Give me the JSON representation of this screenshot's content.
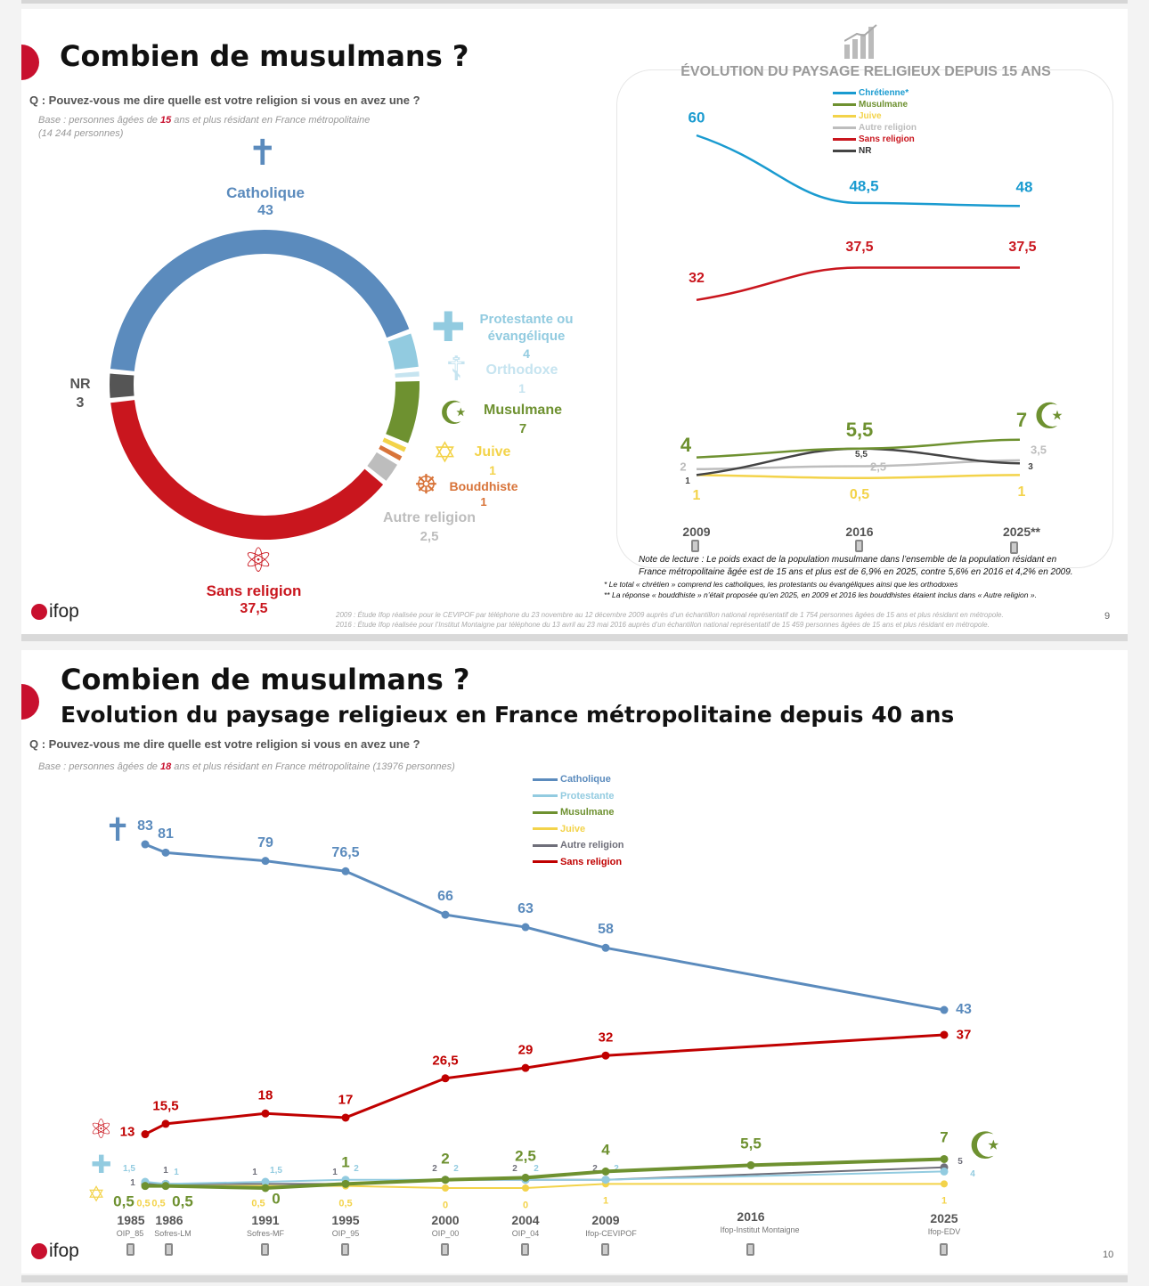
{
  "slide1": {
    "title": "Combien de musulmans ?",
    "question": "Q : Pouvez-vous me dire quelle est votre religion si vous en avez une ?",
    "base_prefix": "Base : personnes âgées de ",
    "base_age": "15",
    "base_suffix": " ans et plus résidant en France métropolitaine",
    "base_count": "(14 244 personnes)",
    "logo": "ifop",
    "page_number": "9",
    "donut": {
      "type": "pie",
      "segments": [
        {
          "name": "Catholique",
          "value": 43,
          "label": "43",
          "color": "#5b8bbd",
          "icon": "crucifix-icon"
        },
        {
          "name": "Protestante ou évangélique",
          "value": 4,
          "label": "4",
          "color": "#92cbe0",
          "icon": "cross-icon"
        },
        {
          "name": "Orthodoxe",
          "value": 1,
          "label": "1",
          "color": "#c6e4f0",
          "icon": "orthodox-cross-icon"
        },
        {
          "name": "Musulmane",
          "value": 7,
          "label": "7",
          "color": "#6e9130",
          "icon": "crescent-icon"
        },
        {
          "name": "Juive",
          "value": 1,
          "label": "1",
          "color": "#f3d34a",
          "icon": "star-of-david-icon"
        },
        {
          "name": "Bouddhiste",
          "value": 1,
          "label": "1",
          "color": "#d8743a",
          "icon": "dharma-wheel-icon"
        },
        {
          "name": "Autre religion",
          "value": 2.5,
          "label": "2,5",
          "color": "#bdbdbd",
          "icon": ""
        },
        {
          "name": "Sans religion",
          "value": 37.5,
          "label": "37,5",
          "color": "#c9161e",
          "icon": "atom-icon"
        },
        {
          "name": "NR",
          "value": 3,
          "label": "3",
          "color": "#555555",
          "icon": ""
        }
      ],
      "label_lines": {
        "protestante_1": "Protestante ou",
        "protestante_2": "évangélique"
      }
    },
    "evolution": {
      "title": "ÉVOLUTION DU PAYSAGE RELIGIEUX DEPUIS 15 ANS",
      "chart_data": {
        "type": "line",
        "title": "ÉVOLUTION DU PAYSAGE RELIGIEUX DEPUIS 15 ANS",
        "categories": [
          "2009",
          "2016",
          "2025**"
        ],
        "legend_position": "top",
        "series": [
          {
            "name": "Chrétienne*",
            "values": [
              60,
              48.5,
              48
            ],
            "labels": [
              "60",
              "48,5",
              "48"
            ],
            "color": "#1a9bd0"
          },
          {
            "name": "Musulmane",
            "values": [
              4,
              5.5,
              7
            ],
            "labels": [
              "4",
              "5,5",
              "7"
            ],
            "color": "#6e9130"
          },
          {
            "name": "Juive",
            "values": [
              1,
              0.5,
              1
            ],
            "labels": [
              "1",
              "0,5",
              "1"
            ],
            "color": "#f3d34a"
          },
          {
            "name": "Autre religion",
            "values": [
              2,
              2.5,
              3.5
            ],
            "labels": [
              "2",
              "2,5",
              "3,5"
            ],
            "color": "#bdbdbd"
          },
          {
            "name": "Sans religion",
            "values": [
              32,
              37.5,
              37.5
            ],
            "labels": [
              "32",
              "37,5",
              "37,5"
            ],
            "color": "#c9161e"
          },
          {
            "name": "NR",
            "values": [
              1,
              5.5,
              3
            ],
            "labels": [
              "1",
              "5,5",
              "3"
            ],
            "color": "#444444"
          }
        ]
      },
      "note_1": "Note de lecture : Le poids exact de la population musulmane dans l’ensemble de la population résidant en",
      "note_2": "France métropolitaine âgée est de 15 ans et plus est de 6,9% en 2025, contre 5,6% en 2016 et 4,2% en 2009.",
      "footnote_1": "* Le total « chrétien » comprend les catholiques, les protestants ou évangéliques ainsi que les orthodoxes",
      "footnote_2": "** La réponse « bouddhiste » n’était proposée qu’en 2025, en 2009 et 2016 les bouddhistes étaient inclus dans « Autre religion ».",
      "source_1": "2009 : Étude Ifop réalisée pour le CEVIPOF par téléphone du 23 novembre au 12 décembre 2009 auprès d’un échantillon national représentatif de 1 754 personnes âgées de 15 ans et plus résidant en métropole.",
      "source_2": "2016 : Étude Ifop réalisée pour l’Institut Montaigne par téléphone du 13 avril au 23 mai 2016 auprès d’un échantillon national représentatif de 15 459 personnes âgées de 15 ans et plus résidant en métropole."
    }
  },
  "slide2": {
    "title": "Combien de musulmans ?",
    "subtitle": "Evolution du paysage religieux en France métropolitaine depuis 40 ans",
    "question": "Q : Pouvez-vous me dire quelle est votre religion si vous en avez une ?",
    "base_prefix": "Base : personnes âgées de ",
    "base_age": "18",
    "base_suffix": " ans et plus résidant en France métropolitaine (13976 personnes)",
    "logo": "ifop",
    "page_number": "10",
    "chart_data": {
      "type": "line",
      "x": [
        1985,
        1986,
        1991,
        1995,
        2000,
        2004,
        2009,
        2016,
        2025
      ],
      "categories": [
        "1985",
        "1986",
        "1991",
        "1995",
        "2000",
        "2004",
        "2009",
        "2016",
        "2025"
      ],
      "sources": [
        "OIP_85",
        "Sofres-LM",
        "Sofres-MF",
        "OIP_95",
        "OIP_00",
        "OIP_04",
        "Ifop-CEVIPOF",
        "Ifop-Institut Montaigne",
        "Ifop-EDV"
      ],
      "legend_position": "top-center",
      "series": [
        {
          "name": "Catholique",
          "color": "#5b8bbd",
          "values": [
            83,
            81,
            79,
            76.5,
            66,
            63,
            58,
            null,
            43
          ],
          "labels": [
            "83",
            "81",
            "79",
            "76,5",
            "66",
            "63",
            "58",
            null,
            "43"
          ]
        },
        {
          "name": "Protestante",
          "color": "#92cbe0",
          "values": [
            1.5,
            1,
            1.5,
            2,
            2,
            2,
            2,
            null,
            4
          ],
          "labels": [
            "1,5",
            "1",
            "1,5",
            "2",
            "2",
            "2",
            "2",
            null,
            "4"
          ]
        },
        {
          "name": "Musulmane",
          "color": "#6e9130",
          "values": [
            0.5,
            0.5,
            0,
            1,
            2,
            2.5,
            4,
            5.5,
            7
          ],
          "labels": [
            "0,5",
            "0,5",
            "0",
            "1",
            "2",
            "2,5",
            "4",
            "5,5",
            "7"
          ]
        },
        {
          "name": "Juive",
          "color": "#f3d34a",
          "values": [
            0.5,
            0.5,
            0.5,
            0.5,
            0,
            0,
            1,
            null,
            1
          ],
          "labels": [
            "0,5",
            "0,5",
            "0,5",
            "0,5",
            "0",
            "0",
            "1",
            null,
            "1"
          ]
        },
        {
          "name": "Autre religion",
          "color": "#6f6f7a",
          "values": [
            1,
            1,
            1,
            1,
            2,
            2,
            2,
            null,
            5
          ],
          "labels": [
            "1",
            "1",
            "1",
            "1",
            "2",
            "2",
            "2",
            null,
            "5"
          ]
        },
        {
          "name": "Sans religion",
          "color": "#c00000",
          "values": [
            13,
            15.5,
            18,
            17,
            26.5,
            29,
            32,
            null,
            37
          ],
          "labels": [
            "13",
            "15,5",
            "18",
            "17",
            "26,5",
            "29",
            "32",
            null,
            "37"
          ]
        }
      ]
    }
  }
}
